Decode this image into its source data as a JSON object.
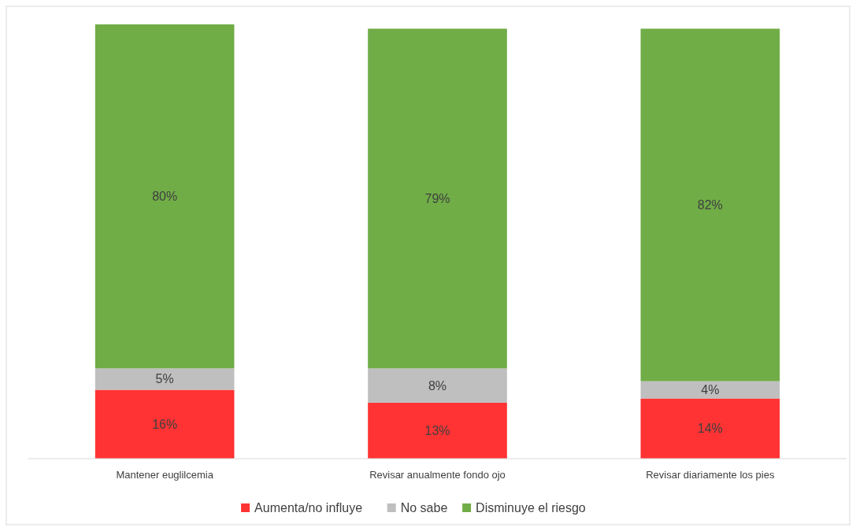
{
  "chart_data": {
    "type": "bar",
    "stacked": true,
    "categories": [
      "Mantener euglilcemia",
      "Revisar anualmente fondo ojo",
      "Revisar diariamente los pies"
    ],
    "series": [
      {
        "name": "Aumenta/no influye",
        "color": "#ff3333",
        "values": [
          16,
          13,
          14
        ],
        "value_labels": [
          "16%",
          "13%",
          "14%"
        ]
      },
      {
        "name": "No sabe",
        "color": "#bfbfbf",
        "values": [
          5,
          8,
          4
        ],
        "value_labels": [
          "5%",
          "8%",
          "4%"
        ]
      },
      {
        "name": "Disminuye el riesgo",
        "color": "#70ad47",
        "values": [
          80,
          79,
          82
        ],
        "value_labels": [
          "80%",
          "79%",
          "82%"
        ]
      }
    ],
    "legend": "bottom"
  }
}
